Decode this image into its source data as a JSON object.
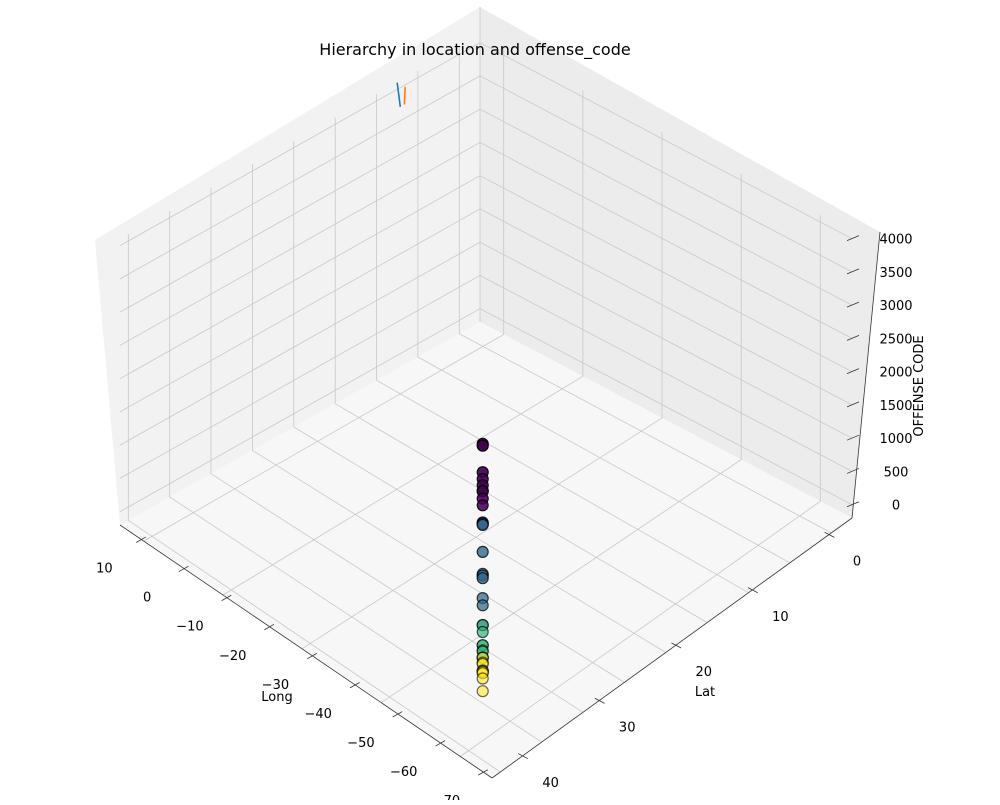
{
  "chart_data": {
    "type": "scatter",
    "projection": "3d",
    "title": "Hierarchy in location and offense_code",
    "xlabel": "Long",
    "ylabel": "Lat",
    "zlabel": "OFFENSE CODE",
    "x_ticks": [
      "10",
      "0",
      "−10",
      "−20",
      "−30",
      "−40",
      "−50",
      "−60",
      "−70"
    ],
    "y_ticks": [
      "0",
      "10",
      "20",
      "30",
      "40"
    ],
    "z_ticks": [
      "0",
      "500",
      "1000",
      "1500",
      "2000",
      "2500",
      "3000",
      "3500",
      "4000"
    ],
    "x_range": [
      15,
      -72
    ],
    "y_range": [
      -3,
      44
    ],
    "z_range": [
      -200,
      4100
    ],
    "grid": true,
    "colormap": "viridis",
    "cluster_colors": [
      "#440154",
      "#31688e",
      "#35b779",
      "#fde725"
    ],
    "points": {
      "x": -71.06,
      "y": 42.33,
      "z_values": [
        3830,
        3801,
        3403,
        3301,
        3207,
        3125,
        3114,
        3006,
        2905,
        2647,
        2629,
        2610,
        2204,
        1874,
        1849,
        1810,
        1510,
        1402,
        1106,
        1102,
        1001,
        802,
        801,
        724,
        706,
        617,
        614,
        611,
        540,
        520,
        423,
        413,
        402,
        381,
        301,
        111
      ],
      "cluster": [
        0,
        0,
        0,
        0,
        0,
        0,
        0,
        0,
        0,
        1,
        1,
        1,
        1,
        1,
        1,
        1,
        1,
        1,
        1,
        2,
        2,
        2,
        2,
        2,
        2,
        2,
        2,
        3,
        3,
        3,
        3,
        3,
        3,
        3,
        3,
        3
      ]
    },
    "line_series": [
      {
        "color": "#1f77b4",
        "x": [
          -5,
          -10
        ],
        "y": [
          -3,
          0
        ],
        "z": [
          4100,
          4100
        ]
      },
      {
        "color": "#ff7f0e",
        "x": [
          -5,
          -9
        ],
        "y": [
          -2,
          0
        ],
        "z": [
          4100,
          4100
        ]
      }
    ]
  }
}
